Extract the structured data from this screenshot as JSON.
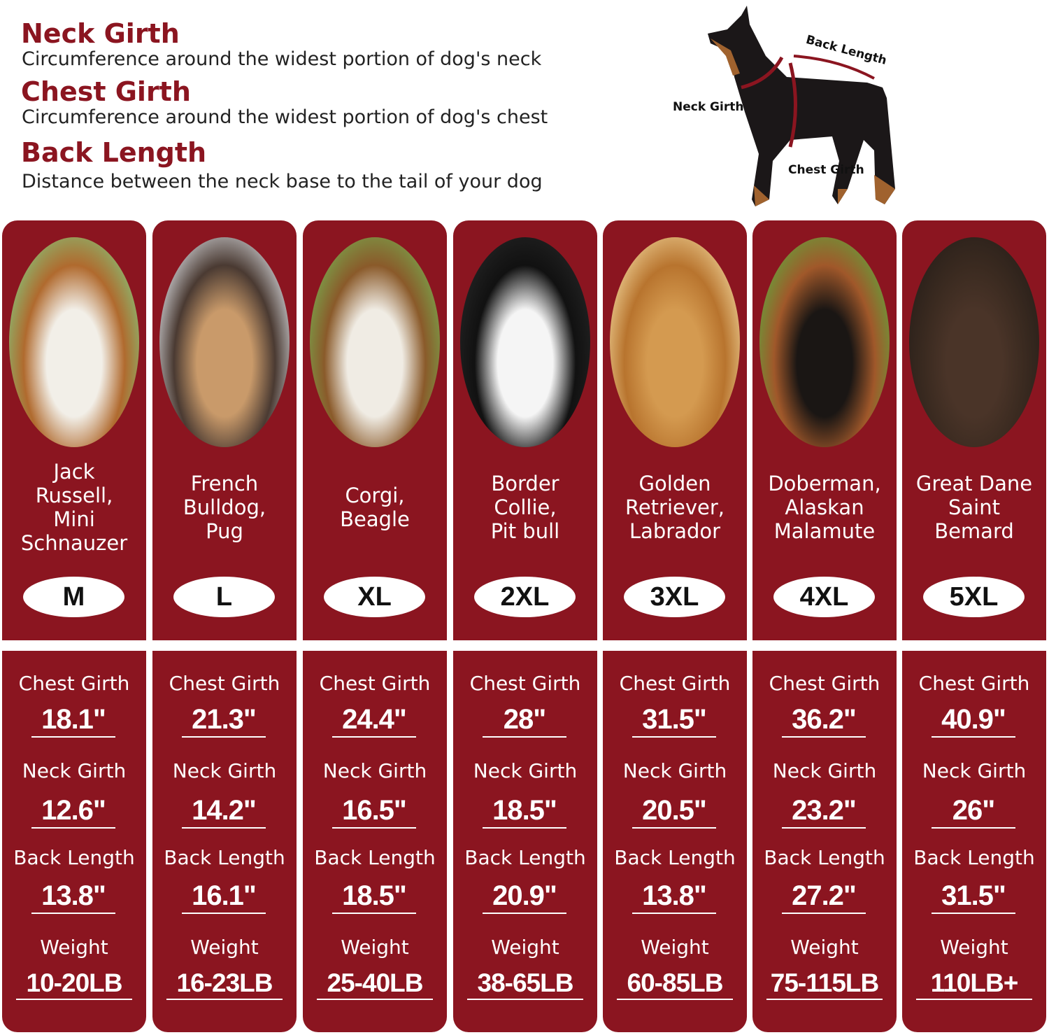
{
  "definitions": [
    {
      "title": "Neck Girth",
      "desc": "Circumference around the widest portion of dog's neck"
    },
    {
      "title": "Chest Girth",
      "desc": "Circumference around the widest portion of dog's chest"
    },
    {
      "title": "Back Length",
      "desc": "Distance between the neck base to the tail of your dog"
    }
  ],
  "diagram": {
    "back_label": "Back Length",
    "neck_label": "Neck Girth",
    "chest_label": "Chest Girth"
  },
  "colors": {
    "panel": "#8b1520",
    "heading": "#8b1520"
  },
  "labels": {
    "chest": "Chest Girth",
    "neck": "Neck Girth",
    "back": "Back Length",
    "weight": "Weight"
  },
  "sizes": [
    {
      "breeds": "Jack\nRussell,\nMini\nSchnauzer",
      "size": "M",
      "chest": "18.1\"",
      "neck": "12.6\"",
      "back": "13.8\"",
      "weight": "10-20LB",
      "photo": [
        "#8ab870",
        "#f2efe8",
        "#b06a2e"
      ]
    },
    {
      "breeds": "French\nBulldog,\nPug",
      "size": "L",
      "chest": "21.3\"",
      "neck": "14.2\"",
      "back": "16.1\"",
      "weight": "16-23LB",
      "photo": [
        "#c9c9cc",
        "#c99a6a",
        "#4a3a32"
      ]
    },
    {
      "breeds": "Corgi,\nBeagle",
      "size": "XL",
      "chest": "24.4\"",
      "neck": "16.5\"",
      "back": "18.5\"",
      "weight": "25-40LB",
      "photo": [
        "#7aa04a",
        "#f0ece4",
        "#8a5a2a"
      ]
    },
    {
      "breeds": "Border\nCollie,\nPit bull",
      "size": "2XL",
      "chest": "28\"",
      "neck": "18.5\"",
      "back": "20.9\"",
      "weight": "38-65LB",
      "photo": [
        "#222",
        "#f5f5f5",
        "#111"
      ]
    },
    {
      "breeds": "Golden\nRetriever,\nLabrador",
      "size": "3XL",
      "chest": "31.5\"",
      "neck": "20.5\"",
      "back": "13.8\"",
      "weight": "60-85LB",
      "photo": [
        "#e8c68a",
        "#d49a50",
        "#b8742e"
      ]
    },
    {
      "breeds": "Doberman,\nAlaskan\nMalamute",
      "size": "4XL",
      "chest": "36.2\"",
      "neck": "23.2\"",
      "back": "27.2\"",
      "weight": "75-115LB",
      "photo": [
        "#6a9a3a",
        "#1a1614",
        "#a0582a"
      ]
    },
    {
      "breeds": "Great Dane\nSaint\nBemard",
      "size": "5XL",
      "chest": "40.9\"",
      "neck": "26\"",
      "back": "31.5\"",
      "weight": "110LB+",
      "photo": [
        "#2a201a",
        "#4a3428",
        "#3a2a20"
      ]
    }
  ]
}
